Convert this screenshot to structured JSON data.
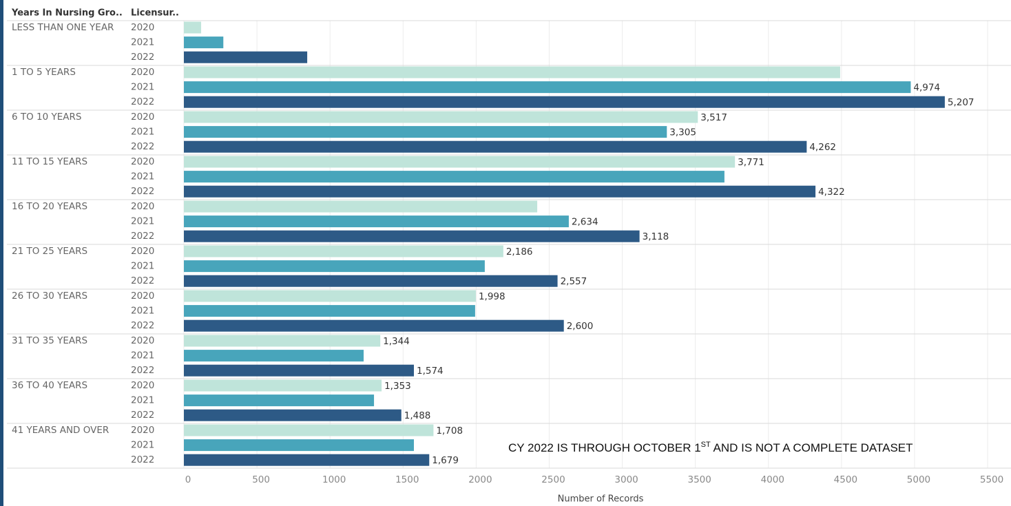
{
  "chart_data": {
    "type": "bar",
    "orientation": "horizontal",
    "row_headers": [
      "Years In Nursing Gro..",
      "Licensur.."
    ],
    "categories": [
      "LESS THAN ONE YEAR",
      "1 TO 5 YEARS",
      "6 TO 10 YEARS",
      "11 TO 15 YEARS",
      "16 TO 20 YEARS",
      "21 TO 25 YEARS",
      "26 TO 30 YEARS",
      "31 TO 35 YEARS",
      "36 TO 40 YEARS",
      "41 YEARS AND OVER"
    ],
    "series": [
      {
        "name": "2020",
        "color": "#bfe4da",
        "values": [
          118,
          4491,
          3517,
          3771,
          2418,
          2186,
          1998,
          1344,
          1353,
          1708
        ],
        "value_labels": [
          null,
          null,
          "3,517",
          "3,771",
          null,
          "2,186",
          "1,998",
          "1,344",
          "1,353",
          "1,708"
        ]
      },
      {
        "name": "2021",
        "color": "#48a5bb",
        "values": [
          270,
          4974,
          3305,
          3699,
          2634,
          2059,
          1993,
          1230,
          1301,
          1574
        ],
        "value_labels": [
          null,
          "4,974",
          "3,305",
          null,
          "2,634",
          null,
          null,
          null,
          null,
          null
        ]
      },
      {
        "name": "2022",
        "color": "#2d5a86",
        "values": [
          844,
          5207,
          4262,
          4322,
          3118,
          2557,
          2600,
          1574,
          1488,
          1679
        ],
        "value_labels": [
          null,
          "5,207",
          "4,262",
          "4,322",
          "3,118",
          "2,557",
          "2,600",
          "1,574",
          "1,488",
          "1,679"
        ]
      }
    ],
    "x_label": "Number of Records",
    "xlim": [
      0,
      5660
    ],
    "xticks": [
      0,
      500,
      1000,
      1500,
      2000,
      2500,
      3000,
      3500,
      4000,
      4500,
      5000,
      5500
    ],
    "grid": true,
    "annotation": {
      "text": "CY 2022 IS THROUGH OCTOBER 1",
      "superscript": "ST",
      "text_after": " AND IS NOT A COMPLETE DATASET"
    }
  }
}
